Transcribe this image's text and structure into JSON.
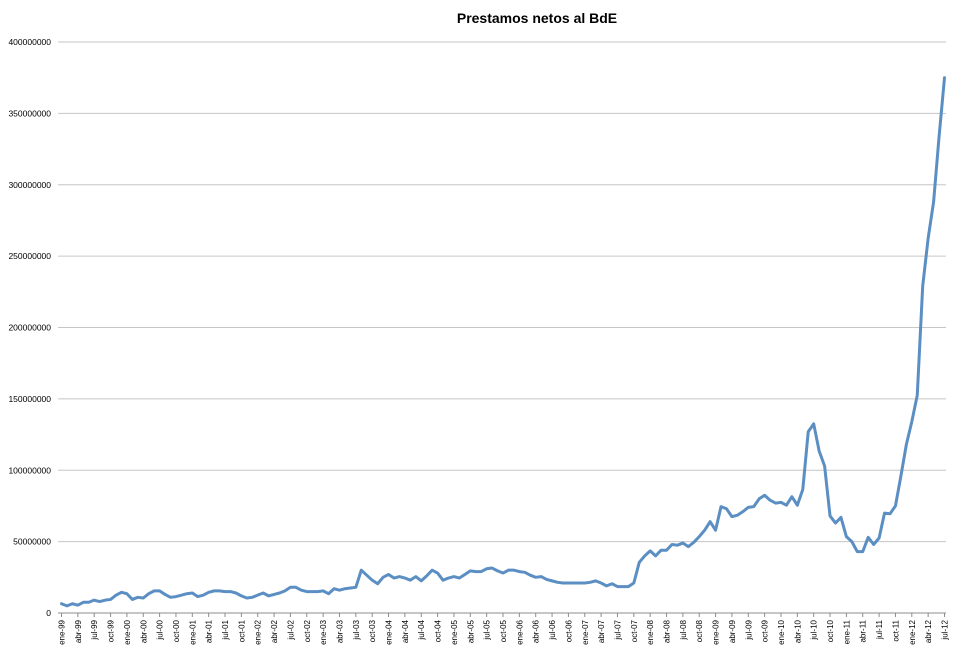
{
  "chart_data": {
    "type": "line",
    "title": "Prestamos netos al BdE",
    "xlabel": "",
    "ylabel": "",
    "ylim": [
      0,
      400000000
    ],
    "yticks": [
      0,
      50000000,
      100000000,
      150000000,
      200000000,
      250000000,
      300000000,
      350000000,
      400000000
    ],
    "ytick_labels": [
      "0",
      "50000000",
      "100000000",
      "150000000",
      "200000000",
      "250000000",
      "300000000",
      "350000000",
      "400000000"
    ],
    "grid": true,
    "legend": "none",
    "colors": {
      "series": "#5b8fc3",
      "grid": "#c6c6c6",
      "axis": "#8c8c8c"
    },
    "xtick_labels": [
      "ene-99",
      "abr-99",
      "jul-99",
      "oct-99",
      "ene-00",
      "abr-00",
      "jul-00",
      "oct-00",
      "ene-01",
      "abr-01",
      "jul-01",
      "oct-01",
      "ene-02",
      "abr-02",
      "jul-02",
      "oct-02",
      "ene-03",
      "abr-03",
      "jul-03",
      "oct-03",
      "ene-04",
      "abr-04",
      "jul-04",
      "oct-04",
      "ene-05",
      "abr-05",
      "jul-05",
      "oct-05",
      "ene-06",
      "abr-06",
      "jul-06",
      "oct-06",
      "ene-07",
      "abr-07",
      "jul-07",
      "oct-07",
      "ene-08",
      "abr-08",
      "jul-08",
      "oct-08",
      "ene-09",
      "abr-09",
      "jul-09",
      "oct-09",
      "ene-10",
      "abr-10",
      "jul-10",
      "oct-10",
      "ene-11",
      "abr-11",
      "jul-11",
      "oct-11",
      "ene-12",
      "abr-12",
      "jul-12"
    ],
    "series": [
      {
        "values": [
          6500000,
          5000000,
          6500000,
          5500000,
          7500000,
          7500000,
          9000000,
          8000000,
          9000000,
          9500000,
          12500000,
          14500000,
          13500000,
          9500000,
          11000000,
          10500000,
          13500000,
          15500000,
          15500000,
          13000000,
          11000000,
          11500000,
          12500000,
          13500000,
          14000000,
          11500000,
          12500000,
          14500000,
          15500000,
          15500000,
          15000000,
          15000000,
          14000000,
          12000000,
          10500000,
          11000000,
          12500000,
          14000000,
          12000000,
          13000000,
          14000000,
          15500000,
          18000000,
          18000000,
          16000000,
          15000000,
          15000000,
          15000000,
          15500000,
          13500000,
          17000000,
          16000000,
          17000000,
          17500000,
          18000000,
          30000000,
          26500000,
          23000000,
          20500000,
          25000000,
          27000000,
          24500000,
          25500000,
          24500000,
          23000000,
          25500000,
          22500000,
          26000000,
          30000000,
          28000000,
          23000000,
          24500000,
          25500000,
          24500000,
          27000000,
          29500000,
          29000000,
          29000000,
          31000000,
          31500000,
          29500000,
          28000000,
          30000000,
          30000000,
          29000000,
          28500000,
          26500000,
          25000000,
          25500000,
          23500000,
          22500000,
          21500000,
          21000000,
          21000000,
          21000000,
          21000000,
          21000000,
          21500000,
          22500000,
          21000000,
          19000000,
          20500000,
          18500000,
          18500000,
          18500000,
          21000000,
          35500000,
          40000000,
          43500000,
          40000000,
          44000000,
          44000000,
          48000000,
          47500000,
          49000000,
          46500000,
          49500000,
          53500000,
          58000000,
          64000000,
          58000000,
          74500000,
          73000000,
          67500000,
          68500000,
          71000000,
          74000000,
          74500000,
          80000000,
          82500000,
          79000000,
          77000000,
          77500000,
          75500000,
          81500000,
          75500000,
          86500000,
          127000000,
          132500000,
          113500000,
          103000000,
          68000000,
          63000000,
          67000000,
          53500000,
          50000000,
          43000000,
          43000000,
          53000000,
          48000000,
          52500000,
          70000000,
          69500000,
          75000000,
          96000000,
          118000000,
          134000000,
          152500000,
          229000000,
          262500000,
          288000000,
          333500000,
          375000000
        ]
      }
    ]
  }
}
